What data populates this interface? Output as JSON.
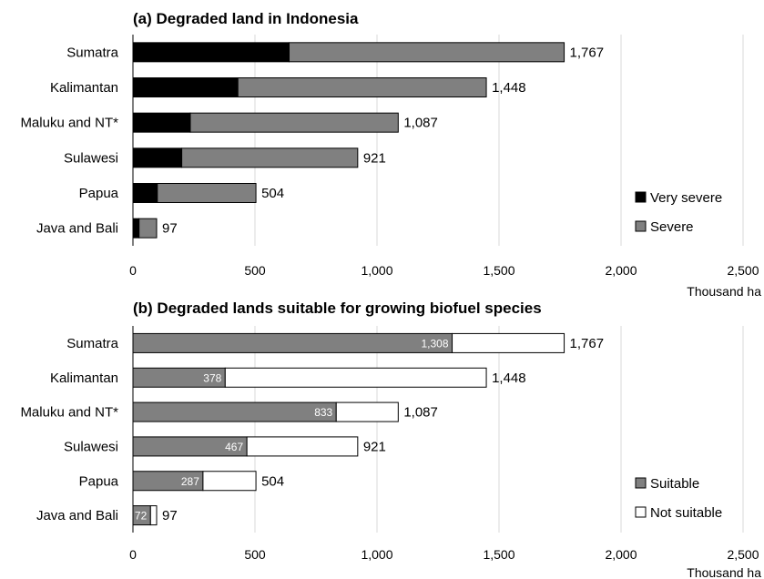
{
  "chart_data": [
    {
      "type": "bar",
      "orientation": "horizontal",
      "stacked": true,
      "title": "(a) Degraded land in Indonesia",
      "categories": [
        "Sumatra",
        "Kalimantan",
        "Maluku and NT*",
        "Sulawesi",
        "Papua",
        "Java and Bali"
      ],
      "series": [
        {
          "name": "Very severe",
          "color": "#000000",
          "values": [
            640,
            430,
            235,
            200,
            100,
            25
          ]
        },
        {
          "name": "Severe",
          "color": "#808080",
          "values": [
            1127,
            1018,
            852,
            721,
            404,
            72
          ]
        }
      ],
      "totals": [
        "1,767",
        "1,448",
        "1,087",
        "921",
        "504",
        "97"
      ],
      "xlim": [
        0,
        2500
      ],
      "xticks": [
        "0",
        "500",
        "1,000",
        "1,500",
        "2,000",
        "2,500"
      ],
      "xlabel": "Thousand ha",
      "legend_position": "bottom-right",
      "grid": true
    },
    {
      "type": "bar",
      "orientation": "horizontal",
      "stacked": true,
      "title": "(b) Degraded lands suitable for growing biofuel species",
      "categories": [
        "Sumatra",
        "Kalimantan",
        "Maluku and NT*",
        "Sulawesi",
        "Papua",
        "Java and Bali"
      ],
      "series": [
        {
          "name": "Suitable",
          "color": "#808080",
          "values": [
            1308,
            378,
            833,
            467,
            287,
            72
          ],
          "labels": [
            "1,308",
            "378",
            "833",
            "467",
            "287",
            "72"
          ]
        },
        {
          "name": "Not suitable",
          "color": "#ffffff",
          "values": [
            459,
            1070,
            254,
            454,
            217,
            25
          ]
        }
      ],
      "totals": [
        "1,767",
        "1,448",
        "1,087",
        "921",
        "504",
        "97"
      ],
      "xlim": [
        0,
        2500
      ],
      "xticks": [
        "0",
        "500",
        "1,000",
        "1,500",
        "2,000",
        "2,500"
      ],
      "xlabel": "Thousand ha",
      "legend_position": "bottom-right",
      "grid": true
    }
  ]
}
